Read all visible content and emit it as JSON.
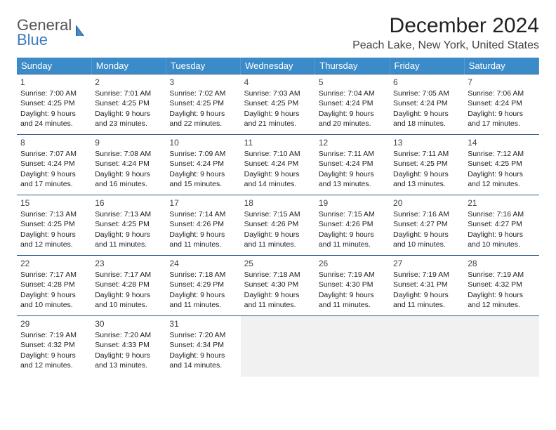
{
  "logo": {
    "word1": "General",
    "word2": "Blue",
    "word1_color": "#666666",
    "word2_color": "#3b7bbf",
    "icon_color": "#2e6aa8"
  },
  "title": "December 2024",
  "location": "Peach Lake, New York, United States",
  "header_bg": "#3b8bc9",
  "row_border": "#2a5a8a",
  "weekdays": [
    "Sunday",
    "Monday",
    "Tuesday",
    "Wednesday",
    "Thursday",
    "Friday",
    "Saturday"
  ],
  "weeks": [
    [
      {
        "day": "1",
        "sunrise": "Sunrise: 7:00 AM",
        "sunset": "Sunset: 4:25 PM",
        "dl1": "Daylight: 9 hours",
        "dl2": "and 24 minutes."
      },
      {
        "day": "2",
        "sunrise": "Sunrise: 7:01 AM",
        "sunset": "Sunset: 4:25 PM",
        "dl1": "Daylight: 9 hours",
        "dl2": "and 23 minutes."
      },
      {
        "day": "3",
        "sunrise": "Sunrise: 7:02 AM",
        "sunset": "Sunset: 4:25 PM",
        "dl1": "Daylight: 9 hours",
        "dl2": "and 22 minutes."
      },
      {
        "day": "4",
        "sunrise": "Sunrise: 7:03 AM",
        "sunset": "Sunset: 4:25 PM",
        "dl1": "Daylight: 9 hours",
        "dl2": "and 21 minutes."
      },
      {
        "day": "5",
        "sunrise": "Sunrise: 7:04 AM",
        "sunset": "Sunset: 4:24 PM",
        "dl1": "Daylight: 9 hours",
        "dl2": "and 20 minutes."
      },
      {
        "day": "6",
        "sunrise": "Sunrise: 7:05 AM",
        "sunset": "Sunset: 4:24 PM",
        "dl1": "Daylight: 9 hours",
        "dl2": "and 18 minutes."
      },
      {
        "day": "7",
        "sunrise": "Sunrise: 7:06 AM",
        "sunset": "Sunset: 4:24 PM",
        "dl1": "Daylight: 9 hours",
        "dl2": "and 17 minutes."
      }
    ],
    [
      {
        "day": "8",
        "sunrise": "Sunrise: 7:07 AM",
        "sunset": "Sunset: 4:24 PM",
        "dl1": "Daylight: 9 hours",
        "dl2": "and 17 minutes."
      },
      {
        "day": "9",
        "sunrise": "Sunrise: 7:08 AM",
        "sunset": "Sunset: 4:24 PM",
        "dl1": "Daylight: 9 hours",
        "dl2": "and 16 minutes."
      },
      {
        "day": "10",
        "sunrise": "Sunrise: 7:09 AM",
        "sunset": "Sunset: 4:24 PM",
        "dl1": "Daylight: 9 hours",
        "dl2": "and 15 minutes."
      },
      {
        "day": "11",
        "sunrise": "Sunrise: 7:10 AM",
        "sunset": "Sunset: 4:24 PM",
        "dl1": "Daylight: 9 hours",
        "dl2": "and 14 minutes."
      },
      {
        "day": "12",
        "sunrise": "Sunrise: 7:11 AM",
        "sunset": "Sunset: 4:24 PM",
        "dl1": "Daylight: 9 hours",
        "dl2": "and 13 minutes."
      },
      {
        "day": "13",
        "sunrise": "Sunrise: 7:11 AM",
        "sunset": "Sunset: 4:25 PM",
        "dl1": "Daylight: 9 hours",
        "dl2": "and 13 minutes."
      },
      {
        "day": "14",
        "sunrise": "Sunrise: 7:12 AM",
        "sunset": "Sunset: 4:25 PM",
        "dl1": "Daylight: 9 hours",
        "dl2": "and 12 minutes."
      }
    ],
    [
      {
        "day": "15",
        "sunrise": "Sunrise: 7:13 AM",
        "sunset": "Sunset: 4:25 PM",
        "dl1": "Daylight: 9 hours",
        "dl2": "and 12 minutes."
      },
      {
        "day": "16",
        "sunrise": "Sunrise: 7:13 AM",
        "sunset": "Sunset: 4:25 PM",
        "dl1": "Daylight: 9 hours",
        "dl2": "and 11 minutes."
      },
      {
        "day": "17",
        "sunrise": "Sunrise: 7:14 AM",
        "sunset": "Sunset: 4:26 PM",
        "dl1": "Daylight: 9 hours",
        "dl2": "and 11 minutes."
      },
      {
        "day": "18",
        "sunrise": "Sunrise: 7:15 AM",
        "sunset": "Sunset: 4:26 PM",
        "dl1": "Daylight: 9 hours",
        "dl2": "and 11 minutes."
      },
      {
        "day": "19",
        "sunrise": "Sunrise: 7:15 AM",
        "sunset": "Sunset: 4:26 PM",
        "dl1": "Daylight: 9 hours",
        "dl2": "and 11 minutes."
      },
      {
        "day": "20",
        "sunrise": "Sunrise: 7:16 AM",
        "sunset": "Sunset: 4:27 PM",
        "dl1": "Daylight: 9 hours",
        "dl2": "and 10 minutes."
      },
      {
        "day": "21",
        "sunrise": "Sunrise: 7:16 AM",
        "sunset": "Sunset: 4:27 PM",
        "dl1": "Daylight: 9 hours",
        "dl2": "and 10 minutes."
      }
    ],
    [
      {
        "day": "22",
        "sunrise": "Sunrise: 7:17 AM",
        "sunset": "Sunset: 4:28 PM",
        "dl1": "Daylight: 9 hours",
        "dl2": "and 10 minutes."
      },
      {
        "day": "23",
        "sunrise": "Sunrise: 7:17 AM",
        "sunset": "Sunset: 4:28 PM",
        "dl1": "Daylight: 9 hours",
        "dl2": "and 10 minutes."
      },
      {
        "day": "24",
        "sunrise": "Sunrise: 7:18 AM",
        "sunset": "Sunset: 4:29 PM",
        "dl1": "Daylight: 9 hours",
        "dl2": "and 11 minutes."
      },
      {
        "day": "25",
        "sunrise": "Sunrise: 7:18 AM",
        "sunset": "Sunset: 4:30 PM",
        "dl1": "Daylight: 9 hours",
        "dl2": "and 11 minutes."
      },
      {
        "day": "26",
        "sunrise": "Sunrise: 7:19 AM",
        "sunset": "Sunset: 4:30 PM",
        "dl1": "Daylight: 9 hours",
        "dl2": "and 11 minutes."
      },
      {
        "day": "27",
        "sunrise": "Sunrise: 7:19 AM",
        "sunset": "Sunset: 4:31 PM",
        "dl1": "Daylight: 9 hours",
        "dl2": "and 11 minutes."
      },
      {
        "day": "28",
        "sunrise": "Sunrise: 7:19 AM",
        "sunset": "Sunset: 4:32 PM",
        "dl1": "Daylight: 9 hours",
        "dl2": "and 12 minutes."
      }
    ],
    [
      {
        "day": "29",
        "sunrise": "Sunrise: 7:19 AM",
        "sunset": "Sunset: 4:32 PM",
        "dl1": "Daylight: 9 hours",
        "dl2": "and 12 minutes."
      },
      {
        "day": "30",
        "sunrise": "Sunrise: 7:20 AM",
        "sunset": "Sunset: 4:33 PM",
        "dl1": "Daylight: 9 hours",
        "dl2": "and 13 minutes."
      },
      {
        "day": "31",
        "sunrise": "Sunrise: 7:20 AM",
        "sunset": "Sunset: 4:34 PM",
        "dl1": "Daylight: 9 hours",
        "dl2": "and 14 minutes."
      },
      null,
      null,
      null,
      null
    ]
  ]
}
